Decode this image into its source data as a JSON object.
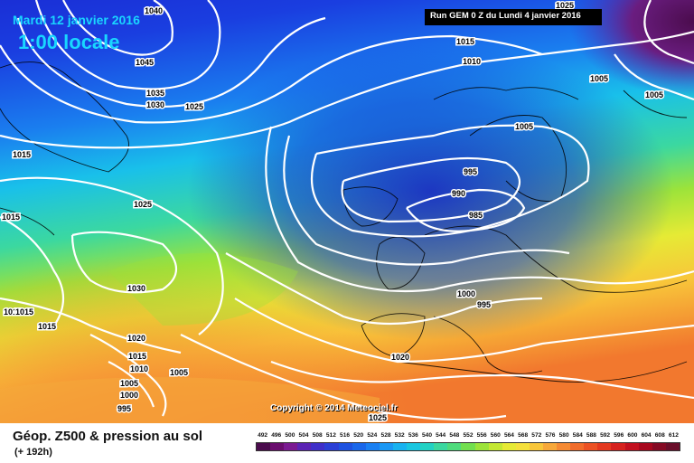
{
  "header": {
    "date": "Mardi 12 janvier 2016",
    "time": "1:00 locale",
    "run": "Run GEM 0 Z du Lundi 4 janvier 2016"
  },
  "copyright": "Copyright © 2014 Meteociel.fr",
  "legend": {
    "title": "Géop. Z500 & pression au sol",
    "subtitle": "(+ 192h)",
    "scale_values": [
      "492",
      "496",
      "500",
      "504",
      "508",
      "512",
      "516",
      "520",
      "524",
      "528",
      "532",
      "536",
      "540",
      "544",
      "548",
      "552",
      "556",
      "560",
      "564",
      "568",
      "572",
      "576",
      "580",
      "584",
      "588",
      "592",
      "596",
      "600",
      "604",
      "608",
      "612"
    ],
    "scale_colors": [
      "#4b0c4d",
      "#6a0d6e",
      "#7b1a92",
      "#5b23b4",
      "#3f2fc9",
      "#2b3fd6",
      "#1e52e0",
      "#1a67ea",
      "#1a80f2",
      "#1a98f5",
      "#18b2f0",
      "#19c6e0",
      "#22d2c4",
      "#3bd8a0",
      "#4fdb7c",
      "#72df4f",
      "#9ce33a",
      "#c4e833",
      "#e6ea35",
      "#f5e03c",
      "#f8c63a",
      "#f7a83a",
      "#f58a34",
      "#f16d2c",
      "#ec5225",
      "#e43920",
      "#d6221f",
      "#c2101f",
      "#a7081e",
      "#850a24",
      "#6a0e2a"
    ]
  },
  "isobars": [
    {
      "label": "1040"
    },
    {
      "label": "1045"
    },
    {
      "label": "1035"
    },
    {
      "label": "1030"
    },
    {
      "label": "1025"
    },
    {
      "label": "1015"
    },
    {
      "label": "1010"
    },
    {
      "label": "1025"
    },
    {
      "label": "1005"
    },
    {
      "label": "1005"
    },
    {
      "label": "1005"
    },
    {
      "label": "1015"
    },
    {
      "label": "1015"
    },
    {
      "label": "995"
    },
    {
      "label": "990"
    },
    {
      "label": "985"
    },
    {
      "label": "1025"
    },
    {
      "label": "1030"
    },
    {
      "label": "1015"
    },
    {
      "label": "1015"
    },
    {
      "label": "1015"
    },
    {
      "label": "1020"
    },
    {
      "label": "1015"
    },
    {
      "label": "1010"
    },
    {
      "label": "1005"
    },
    {
      "label": "1005"
    },
    {
      "label": "1000"
    },
    {
      "label": "995"
    },
    {
      "label": "1000"
    },
    {
      "label": "995"
    },
    {
      "label": "1020"
    },
    {
      "label": "1025"
    }
  ]
}
